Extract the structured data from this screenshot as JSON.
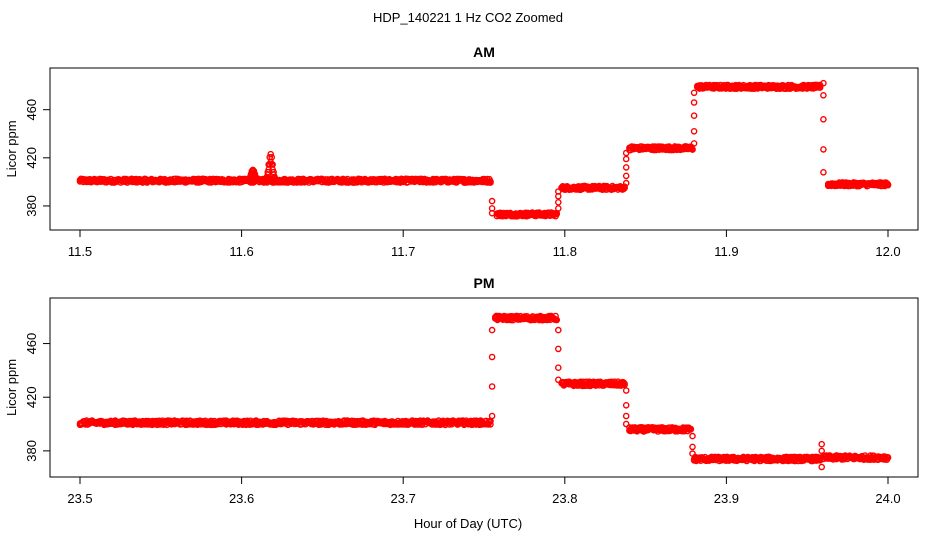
{
  "figure": {
    "title": "HDP_140221  1 Hz CO2 Zoomed",
    "xlabel": "Hour of Day (UTC)"
  },
  "chart_data": [
    {
      "type": "scatter",
      "title": "AM",
      "xlabel": "",
      "ylabel": "Licor ppm",
      "xlim": [
        11.5,
        12.0
      ],
      "ylim": [
        365,
        488
      ],
      "x_ticks": [
        "11.5",
        "11.6",
        "11.7",
        "11.8",
        "11.9",
        "12.0"
      ],
      "y_ticks": [
        "380",
        "420",
        "460"
      ],
      "marker": "open-circle",
      "color": "#ff0000",
      "segments": [
        {
          "x": [
            11.5,
            11.6,
            11.754
          ],
          "y": [
            401,
            401,
            401
          ]
        },
        {
          "x": [
            11.758,
            11.795
          ],
          "y": [
            373,
            373
          ]
        },
        {
          "x": [
            11.798,
            11.837
          ],
          "y": [
            395,
            395
          ]
        },
        {
          "x": [
            11.84,
            11.879
          ],
          "y": [
            428,
            428
          ]
        },
        {
          "x": [
            11.882,
            11.958
          ],
          "y": [
            479,
            479
          ]
        },
        {
          "x": [
            11.963,
            12.0
          ],
          "y": [
            398,
            398
          ]
        }
      ],
      "bumps": [
        {
          "x": 11.607,
          "y": 410
        },
        {
          "x": 11.618,
          "y": 423
        }
      ],
      "transitions": [
        {
          "x": 11.755,
          "y": [
            384,
            378,
            374
          ]
        },
        {
          "x": 11.796,
          "y": [
            378,
            383,
            388,
            392
          ]
        },
        {
          "x": 11.838,
          "y": [
            399,
            405,
            412,
            419,
            424
          ]
        },
        {
          "x": 11.88,
          "y": [
            432,
            442,
            455,
            466,
            474
          ]
        },
        {
          "x": 11.96,
          "y": [
            482,
            472,
            452,
            427,
            408
          ]
        }
      ]
    },
    {
      "type": "scatter",
      "title": "PM",
      "xlabel": "",
      "ylabel": "Licor ppm",
      "xlim": [
        23.5,
        24.0
      ],
      "ylim": [
        365,
        488
      ],
      "x_ticks": [
        "23.5",
        "23.6",
        "23.7",
        "23.8",
        "23.9",
        "24.0"
      ],
      "y_ticks": [
        "380",
        "420",
        "460"
      ],
      "marker": "open-circle",
      "color": "#ff0000",
      "segments": [
        {
          "x": [
            23.5,
            23.754
          ],
          "y": [
            401,
            401
          ]
        },
        {
          "x": [
            23.757,
            23.795
          ],
          "y": [
            479,
            479
          ]
        },
        {
          "x": [
            23.798,
            23.837
          ],
          "y": [
            430,
            430
          ]
        },
        {
          "x": [
            23.84,
            23.878
          ],
          "y": [
            396,
            396
          ]
        },
        {
          "x": [
            23.88,
            23.958
          ],
          "y": [
            374,
            374
          ]
        },
        {
          "x": [
            23.96,
            24.0
          ],
          "y": [
            375,
            375
          ]
        }
      ],
      "bumps": [],
      "transitions": [
        {
          "x": 23.755,
          "y": [
            406,
            428,
            450,
            470
          ]
        },
        {
          "x": 23.796,
          "y": [
            470,
            456,
            442,
            433
          ]
        },
        {
          "x": 23.838,
          "y": [
            425,
            414,
            406,
            400
          ]
        },
        {
          "x": 23.879,
          "y": [
            391,
            383,
            378
          ]
        },
        {
          "x": 23.959,
          "y": [
            368,
            385,
            380
          ]
        }
      ]
    }
  ]
}
